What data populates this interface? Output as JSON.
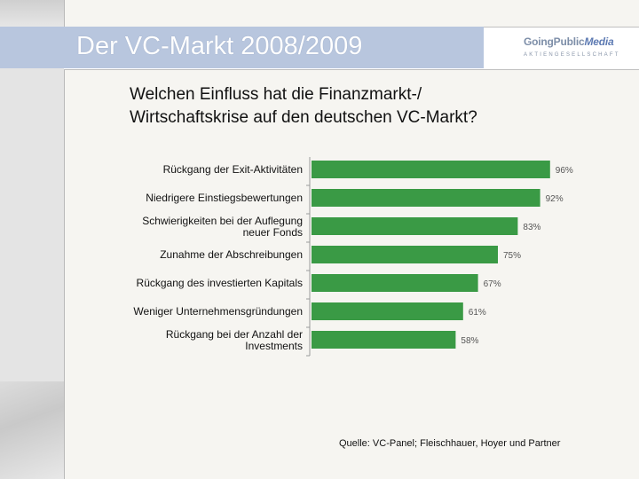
{
  "slide": {
    "title": "Der VC-Markt 2008/2009",
    "question_line1": "Welchen Einfluss hat die Finanzmarkt-/",
    "question_line2": "Wirtschaftskrise auf den deutschen VC-Markt?",
    "source": "Quelle: VC-Panel; Fleischhauer, Hoyer und Partner"
  },
  "logo": {
    "main_part1": "GoingPublic",
    "main_part2": "Media",
    "sub": "AKTIENGESELLSCHAFT"
  },
  "colors": {
    "bar": "#3a9a45",
    "header_band": "#b8c6de"
  },
  "chart_data": {
    "type": "bar",
    "orientation": "horizontal",
    "categories": [
      [
        "Rückgang der Exit-Aktivitäten"
      ],
      [
        "Niedrigere Einstiegsbewertungen"
      ],
      [
        "Schwierigkeiten bei der Auflegung",
        "neuer Fonds"
      ],
      [
        "Zunahme der Abschreibungen"
      ],
      [
        "Rückgang des investierten Kapitals"
      ],
      [
        "Weniger Unternehmensgründungen"
      ],
      [
        "Rückgang bei der Anzahl der",
        "Investments"
      ]
    ],
    "values": [
      96,
      92,
      83,
      75,
      67,
      61,
      58
    ],
    "value_labels": [
      "96%",
      "92%",
      "83%",
      "75%",
      "67%",
      "61%",
      "58%"
    ],
    "xlim": [
      0,
      100
    ],
    "grid": false
  }
}
